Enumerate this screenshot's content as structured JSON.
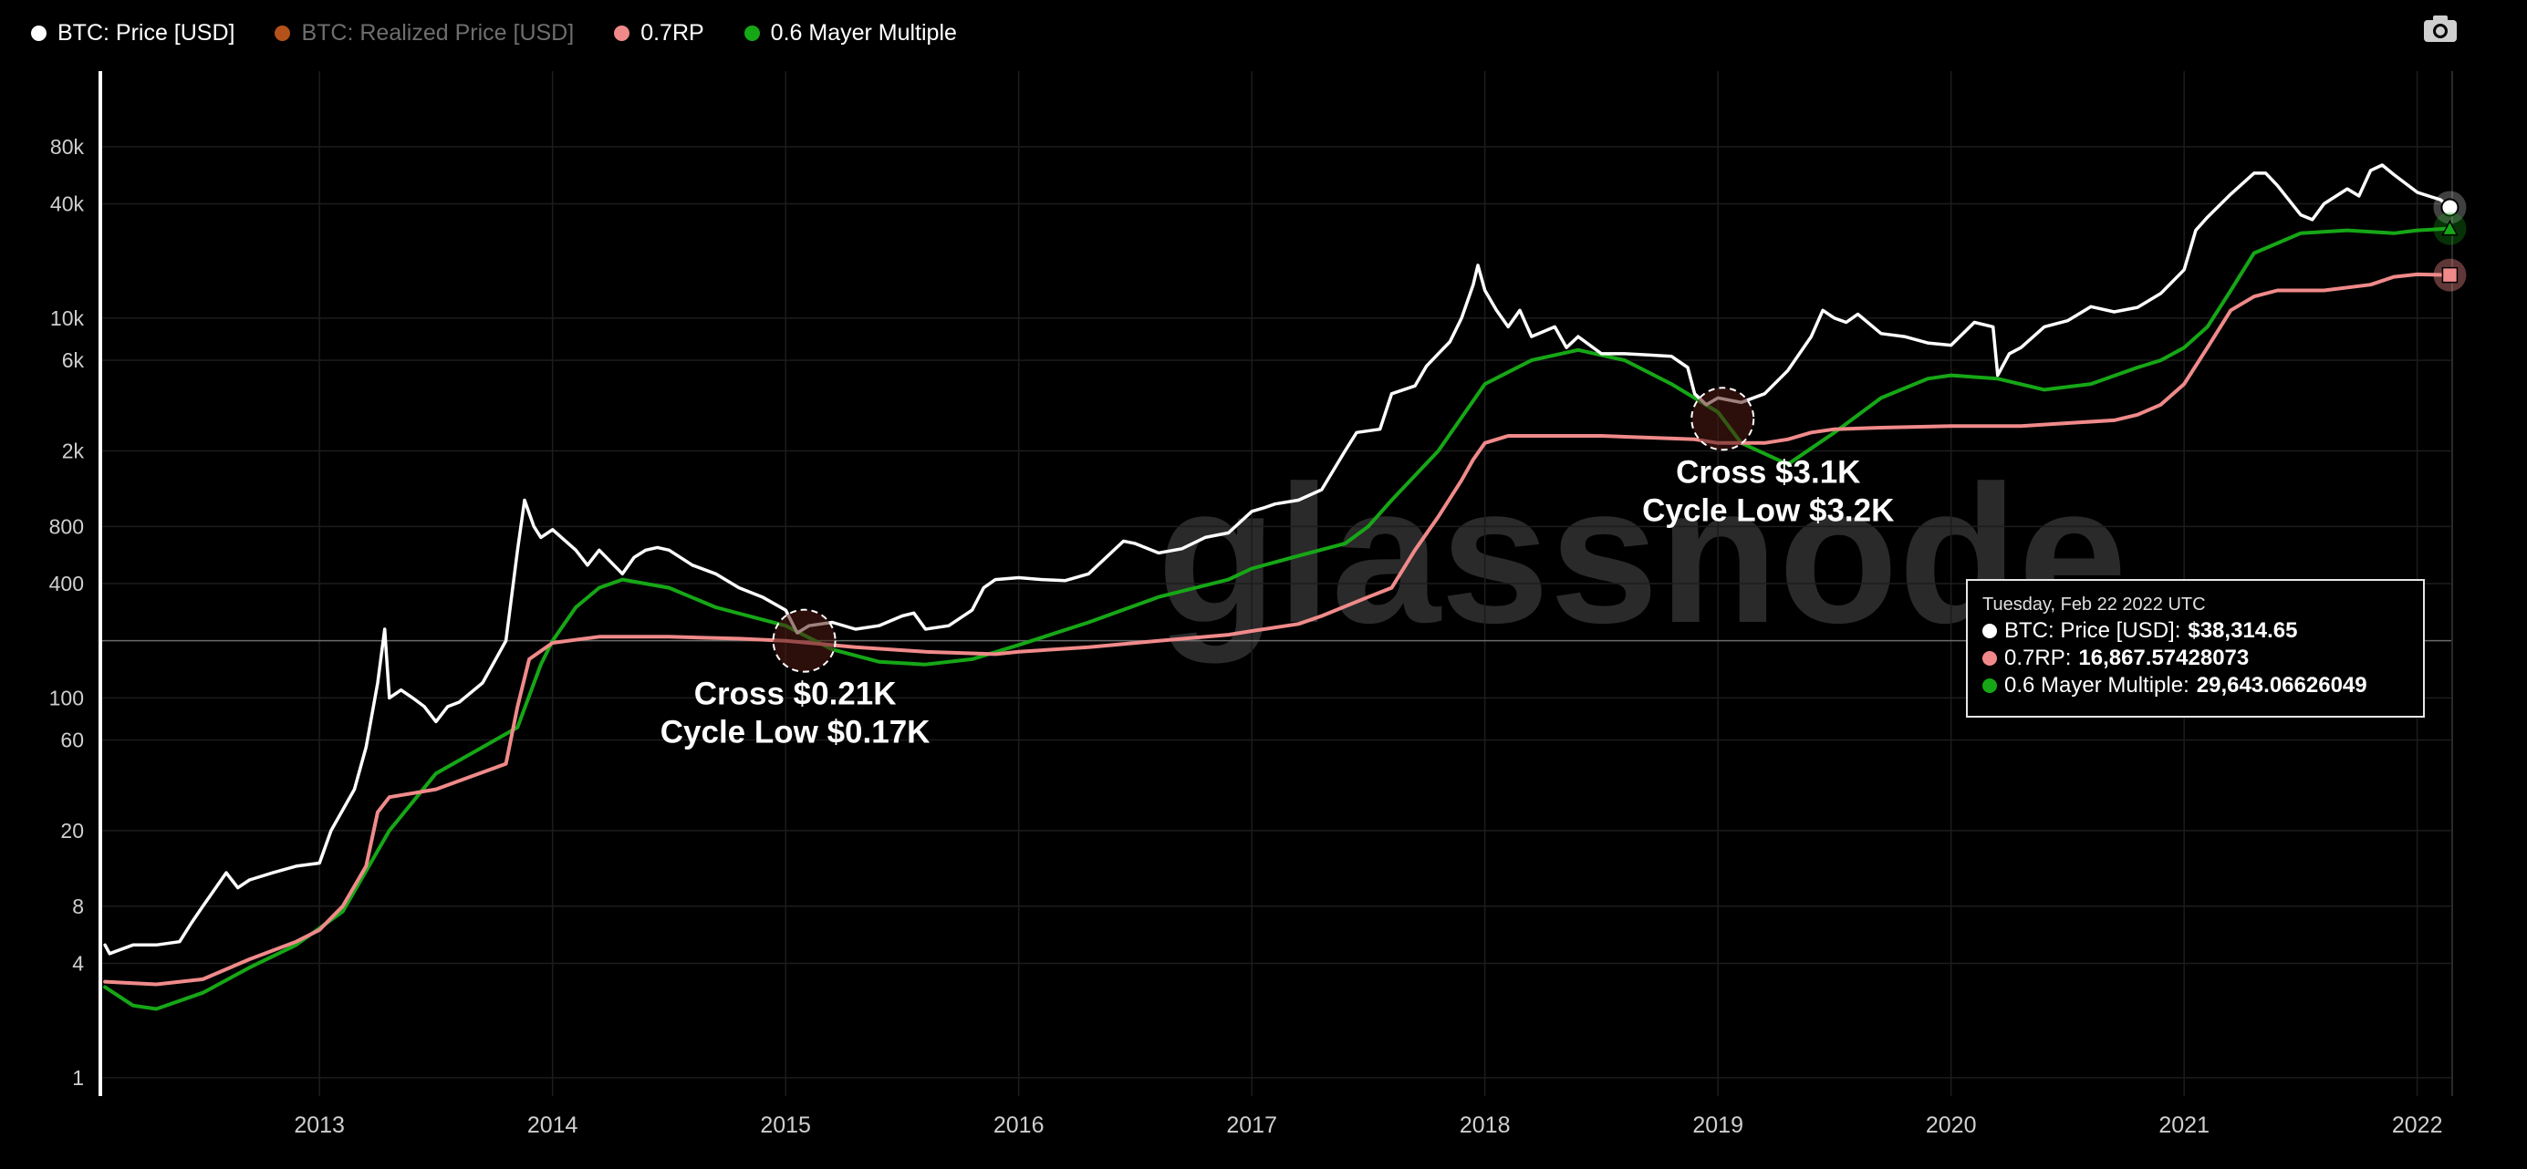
{
  "legend": [
    {
      "label": "BTC: Price [USD]",
      "color": "#ffffff",
      "enabled": true
    },
    {
      "label": "BTC: Realized Price [USD]",
      "color": "#b5521b",
      "enabled": false
    },
    {
      "label": "0.7RP",
      "color": "#f08a8a",
      "enabled": true
    },
    {
      "label": "0.6 Mayer Multiple",
      "color": "#16a716",
      "enabled": true
    }
  ],
  "camera_icon": "camera-icon",
  "watermark": "glassnode",
  "tooltip": {
    "date": "Tuesday, Feb 22 2022 UTC",
    "rows": [
      {
        "label": "BTC: Price [USD]: ",
        "value": "$38,314.65",
        "color": "#ffffff"
      },
      {
        "label": "0.7RP: ",
        "value": "16,867.57428073",
        "color": "#f08a8a"
      },
      {
        "label": "0.6 Mayer Multiple: ",
        "value": "29,643.06626049",
        "color": "#16a716"
      }
    ]
  },
  "chart_data": {
    "type": "line",
    "yscale": "log",
    "ylim": [
      0.8,
      200000
    ],
    "xlim": [
      2012.06,
      2022.15
    ],
    "y_ticks": [
      1,
      4,
      8,
      20,
      60,
      100,
      400,
      800,
      2000,
      6000,
      10000,
      40000,
      80000
    ],
    "y_tick_labels": [
      "1",
      "4",
      "8",
      "20",
      "60",
      "100",
      "400",
      "800",
      "2k",
      "6k",
      "10k",
      "40k",
      "80k"
    ],
    "x_ticks": [
      2013,
      2014,
      2015,
      2016,
      2017,
      2018,
      2019,
      2020,
      2021,
      2022
    ],
    "x_tick_labels": [
      "2013",
      "2014",
      "2015",
      "2016",
      "2017",
      "2018",
      "2019",
      "2020",
      "2021",
      "2022"
    ],
    "grid": true,
    "legend_position": "top-left",
    "crosshair_y": 200,
    "series": [
      {
        "name": "BTC: Price [USD]",
        "color": "#ffffff",
        "x": [
          2012.08,
          2012.1,
          2012.2,
          2012.3,
          2012.4,
          2012.45,
          2012.5,
          2012.6,
          2012.65,
          2012.7,
          2012.8,
          2012.9,
          2013.0,
          2013.05,
          2013.15,
          2013.2,
          2013.25,
          2013.28,
          2013.3,
          2013.35,
          2013.4,
          2013.45,
          2013.5,
          2013.55,
          2013.6,
          2013.7,
          2013.8,
          2013.85,
          2013.88,
          2013.92,
          2013.95,
          2014.0,
          2014.1,
          2014.15,
          2014.2,
          2014.3,
          2014.35,
          2014.4,
          2014.45,
          2014.5,
          2014.6,
          2014.7,
          2014.8,
          2014.9,
          2015.0,
          2015.05,
          2015.1,
          2015.2,
          2015.3,
          2015.4,
          2015.5,
          2015.55,
          2015.6,
          2015.7,
          2015.8,
          2015.85,
          2015.9,
          2016.0,
          2016.1,
          2016.2,
          2016.3,
          2016.45,
          2016.5,
          2016.6,
          2016.7,
          2016.8,
          2016.9,
          2017.0,
          2017.05,
          2017.1,
          2017.2,
          2017.3,
          2017.4,
          2017.45,
          2017.55,
          2017.6,
          2017.7,
          2017.75,
          2017.8,
          2017.85,
          2017.9,
          2017.95,
          2017.97,
          2018.0,
          2018.05,
          2018.1,
          2018.15,
          2018.2,
          2018.3,
          2018.35,
          2018.4,
          2018.5,
          2018.6,
          2018.7,
          2018.8,
          2018.87,
          2018.9,
          2018.95,
          2019.0,
          2019.1,
          2019.2,
          2019.3,
          2019.4,
          2019.45,
          2019.5,
          2019.55,
          2019.6,
          2019.7,
          2019.8,
          2019.9,
          2020.0,
          2020.1,
          2020.18,
          2020.2,
          2020.25,
          2020.3,
          2020.4,
          2020.5,
          2020.6,
          2020.7,
          2020.8,
          2020.9,
          2021.0,
          2021.05,
          2021.1,
          2021.2,
          2021.3,
          2021.35,
          2021.4,
          2021.5,
          2021.55,
          2021.6,
          2021.7,
          2021.75,
          2021.8,
          2021.85,
          2021.9,
          2022.0,
          2022.1,
          2022.14
        ],
        "y": [
          5,
          4.5,
          5,
          5,
          5.2,
          6.5,
          8,
          12,
          10,
          11,
          12,
          13,
          13.5,
          20,
          33,
          55,
          120,
          230,
          100,
          110,
          100,
          90,
          75,
          90,
          95,
          120,
          200,
          600,
          1100,
          800,
          700,
          770,
          600,
          500,
          600,
          450,
          550,
          600,
          620,
          600,
          500,
          450,
          380,
          340,
          290,
          220,
          240,
          250,
          230,
          240,
          270,
          280,
          230,
          240,
          290,
          380,
          420,
          430,
          420,
          415,
          450,
          670,
          650,
          580,
          610,
          700,
          740,
          960,
          1000,
          1050,
          1100,
          1250,
          2000,
          2500,
          2600,
          4000,
          4400,
          5600,
          6500,
          7500,
          10000,
          15000,
          19000,
          14000,
          11000,
          9000,
          11000,
          8000,
          9000,
          7000,
          8000,
          6500,
          6500,
          6400,
          6300,
          5500,
          4000,
          3500,
          3800,
          3600,
          4000,
          5300,
          8000,
          11000,
          10000,
          9500,
          10500,
          8300,
          8000,
          7400,
          7200,
          9500,
          9000,
          5000,
          6500,
          7000,
          9000,
          9700,
          11500,
          10800,
          11400,
          13500,
          18000,
          29000,
          34000,
          45000,
          58000,
          58000,
          50000,
          35000,
          33000,
          40000,
          48000,
          44000,
          60000,
          64000,
          57000,
          46000,
          42000,
          38314.65
        ]
      },
      {
        "name": "0.7RP",
        "color": "#f08a8a",
        "x": [
          2012.08,
          2012.3,
          2012.5,
          2012.7,
          2012.9,
          2013.0,
          2013.1,
          2013.2,
          2013.25,
          2013.3,
          2013.5,
          2013.8,
          2013.85,
          2013.9,
          2014.0,
          2014.2,
          2014.5,
          2014.8,
          2015.0,
          2015.3,
          2015.6,
          2015.9,
          2016.0,
          2016.3,
          2016.6,
          2016.9,
          2017.0,
          2017.2,
          2017.3,
          2017.5,
          2017.6,
          2017.7,
          2017.8,
          2017.9,
          2017.95,
          2018.0,
          2018.1,
          2018.5,
          2018.9,
          2019.0,
          2019.2,
          2019.3,
          2019.4,
          2019.5,
          2019.7,
          2020.0,
          2020.3,
          2020.5,
          2020.7,
          2020.8,
          2020.9,
          2021.0,
          2021.1,
          2021.2,
          2021.3,
          2021.4,
          2021.6,
          2021.8,
          2021.9,
          2022.0,
          2022.14
        ],
        "y": [
          3.2,
          3.1,
          3.3,
          4.2,
          5.2,
          6.0,
          8,
          13,
          25,
          30,
          33,
          45,
          90,
          160,
          195,
          210,
          210,
          205,
          200,
          185,
          175,
          170,
          175,
          185,
          200,
          215,
          225,
          245,
          270,
          340,
          380,
          600,
          900,
          1400,
          1800,
          2200,
          2400,
          2400,
          2300,
          2200,
          2200,
          2300,
          2500,
          2600,
          2650,
          2700,
          2700,
          2800,
          2900,
          3100,
          3500,
          4500,
          7000,
          11000,
          13000,
          14000,
          14000,
          15000,
          16500,
          17000,
          16867.57
        ]
      },
      {
        "name": "0.6 Mayer Multiple",
        "color": "#16a716",
        "x": [
          2012.08,
          2012.2,
          2012.3,
          2012.5,
          2012.7,
          2012.9,
          2013.1,
          2013.3,
          2013.5,
          2013.7,
          2013.85,
          2013.95,
          2014.0,
          2014.1,
          2014.2,
          2014.3,
          2014.5,
          2014.7,
          2015.0,
          2015.2,
          2015.4,
          2015.6,
          2015.8,
          2016.0,
          2016.3,
          2016.6,
          2016.9,
          2017.0,
          2017.2,
          2017.4,
          2017.5,
          2017.6,
          2017.8,
          2018.0,
          2018.2,
          2018.4,
          2018.6,
          2018.8,
          2019.0,
          2019.1,
          2019.3,
          2019.5,
          2019.7,
          2019.9,
          2020.0,
          2020.2,
          2020.4,
          2020.6,
          2020.8,
          2020.9,
          2021.0,
          2021.1,
          2021.2,
          2021.3,
          2021.5,
          2021.7,
          2021.9,
          2022.0,
          2022.14
        ],
        "y": [
          3,
          2.4,
          2.3,
          2.8,
          3.8,
          5,
          7.5,
          20,
          40,
          55,
          70,
          150,
          200,
          300,
          380,
          420,
          380,
          300,
          240,
          180,
          155,
          150,
          160,
          190,
          250,
          340,
          420,
          480,
          560,
          650,
          800,
          1100,
          2000,
          4500,
          6000,
          6800,
          6000,
          4500,
          3200,
          2200,
          1700,
          2500,
          3800,
          4800,
          5000,
          4800,
          4200,
          4500,
          5500,
          6000,
          7000,
          9000,
          14000,
          22000,
          28000,
          29000,
          28000,
          29000,
          29643.07
        ]
      }
    ],
    "annotations": [
      {
        "x": 2015.08,
        "y": 200,
        "lines": [
          "Cross $0.21K",
          "Cycle Low $0.17K"
        ]
      },
      {
        "x": 2019.02,
        "y": 2950,
        "lines": [
          "Cross $3.1K",
          "Cycle Low $3.2K"
        ]
      }
    ]
  }
}
